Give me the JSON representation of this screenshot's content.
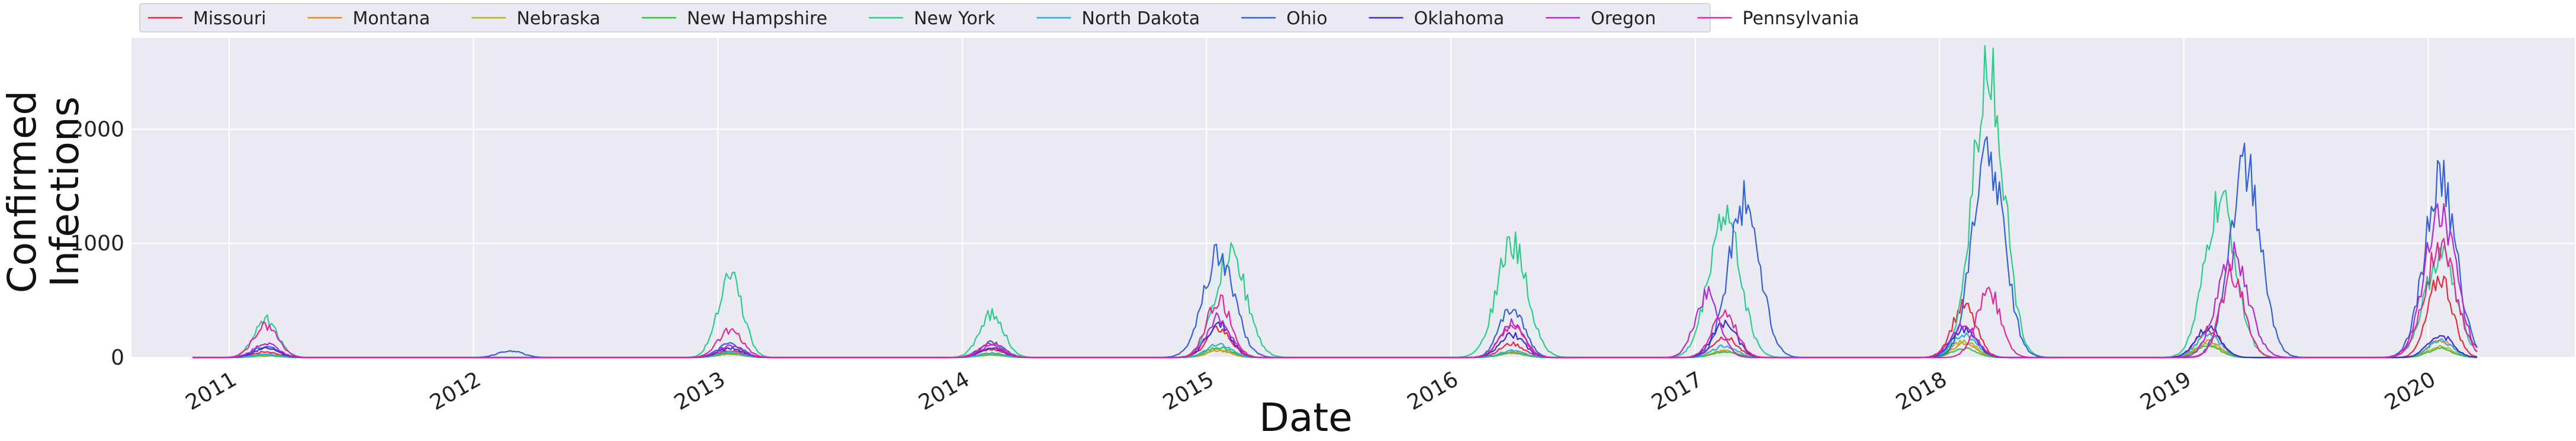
{
  "chart_data": {
    "type": "line",
    "xlabel": "Date",
    "ylabel_lines": [
      "Confirmed",
      "Infections"
    ],
    "ylim": [
      0,
      2800
    ],
    "yticks": [
      0,
      1000,
      2000
    ],
    "ytick_labels": [
      "0",
      "1000",
      "2000"
    ],
    "xlim": [
      2010.6,
      2020.6
    ],
    "xticks": [
      2011,
      2012,
      2013,
      2014,
      2015,
      2016,
      2017,
      2018,
      2019,
      2020
    ],
    "xtick_labels": [
      "2011",
      "2012",
      "2013",
      "2014",
      "2015",
      "2016",
      "2017",
      "2018",
      "2019",
      "2020"
    ],
    "grid": true,
    "legend_position": "top-left, above plot",
    "background": "#EAEAF2",
    "series": [
      {
        "name": "Missouri",
        "color": "#E8283E",
        "peaks": [
          [
            2011.15,
            50
          ],
          [
            2013.05,
            60
          ],
          [
            2014.12,
            70
          ],
          [
            2015.05,
            250
          ],
          [
            2016.25,
            120
          ],
          [
            2017.12,
            180
          ],
          [
            2018.1,
            450
          ],
          [
            2019.1,
            250
          ],
          [
            2020.05,
            700
          ]
        ]
      },
      {
        "name": "Montana",
        "color": "#D9902A",
        "peaks": [
          [
            2011.15,
            20
          ],
          [
            2013.05,
            30
          ],
          [
            2014.12,
            25
          ],
          [
            2015.05,
            60
          ],
          [
            2016.25,
            50
          ],
          [
            2017.12,
            60
          ],
          [
            2018.1,
            120
          ],
          [
            2019.1,
            140
          ],
          [
            2020.05,
            150
          ]
        ]
      },
      {
        "name": "Nebraska",
        "color": "#B7B22A",
        "peaks": [
          [
            2011.15,
            25
          ],
          [
            2013.05,
            40
          ],
          [
            2014.12,
            30
          ],
          [
            2015.05,
            70
          ],
          [
            2016.25,
            40
          ],
          [
            2017.12,
            60
          ],
          [
            2018.1,
            150
          ],
          [
            2019.1,
            120
          ],
          [
            2020.05,
            100
          ]
        ]
      },
      {
        "name": "New Hampshire",
        "color": "#3DBE3D",
        "peaks": [
          [
            2011.15,
            15
          ],
          [
            2013.05,
            40
          ],
          [
            2014.12,
            25
          ],
          [
            2015.05,
            90
          ],
          [
            2016.25,
            40
          ],
          [
            2017.12,
            50
          ],
          [
            2018.1,
            80
          ],
          [
            2019.1,
            100
          ],
          [
            2020.05,
            80
          ]
        ]
      },
      {
        "name": "New York",
        "color": "#2CCB8A",
        "peaks": [
          [
            2011.15,
            330
          ],
          [
            2013.05,
            740
          ],
          [
            2014.12,
            380
          ],
          [
            2015.1,
            900
          ],
          [
            2016.25,
            990
          ],
          [
            2017.12,
            1250
          ],
          [
            2018.2,
            2540
          ],
          [
            2019.15,
            1350
          ],
          [
            2020.05,
            900
          ]
        ]
      },
      {
        "name": "North Dakota",
        "color": "#2AAFD0",
        "peaks": [
          [
            2011.15,
            30
          ],
          [
            2013.05,
            50
          ],
          [
            2014.12,
            40
          ],
          [
            2015.05,
            120
          ],
          [
            2016.25,
            60
          ],
          [
            2017.12,
            100
          ],
          [
            2018.1,
            200
          ],
          [
            2019.1,
            200
          ],
          [
            2020.05,
            150
          ]
        ]
      },
      {
        "name": "Ohio",
        "color": "#3361D6",
        "peaks": [
          [
            2011.15,
            100
          ],
          [
            2012.15,
            60
          ],
          [
            2013.05,
            120
          ],
          [
            2014.12,
            130
          ],
          [
            2015.05,
            900
          ],
          [
            2016.25,
            450
          ],
          [
            2017.2,
            1360
          ],
          [
            2018.2,
            1790
          ],
          [
            2019.25,
            1680
          ],
          [
            2020.05,
            1560
          ]
        ]
      },
      {
        "name": "Oklahoma",
        "color": "#3A2DD1",
        "peaks": [
          [
            2011.15,
            80
          ],
          [
            2013.05,
            80
          ],
          [
            2014.12,
            80
          ],
          [
            2015.05,
            300
          ],
          [
            2016.25,
            200
          ],
          [
            2017.12,
            300
          ],
          [
            2018.1,
            250
          ],
          [
            2019.1,
            270
          ],
          [
            2020.05,
            200
          ]
        ]
      },
      {
        "name": "Oregon",
        "color": "#B229D1",
        "peaks": [
          [
            2011.15,
            120
          ],
          [
            2013.05,
            100
          ],
          [
            2014.12,
            100
          ],
          [
            2015.05,
            350
          ],
          [
            2016.25,
            300
          ],
          [
            2017.05,
            550
          ],
          [
            2018.1,
            300
          ],
          [
            2019.2,
            900
          ],
          [
            2020.05,
            1270
          ]
        ]
      },
      {
        "name": "Pennsylvania",
        "color": "#E0289A",
        "peaks": [
          [
            2011.15,
            280
          ],
          [
            2013.05,
            240
          ],
          [
            2014.12,
            120
          ],
          [
            2015.05,
            500
          ],
          [
            2016.25,
            280
          ],
          [
            2017.12,
            400
          ],
          [
            2018.2,
            590
          ],
          [
            2019.2,
            730
          ],
          [
            2020.05,
            950
          ]
        ]
      }
    ]
  }
}
